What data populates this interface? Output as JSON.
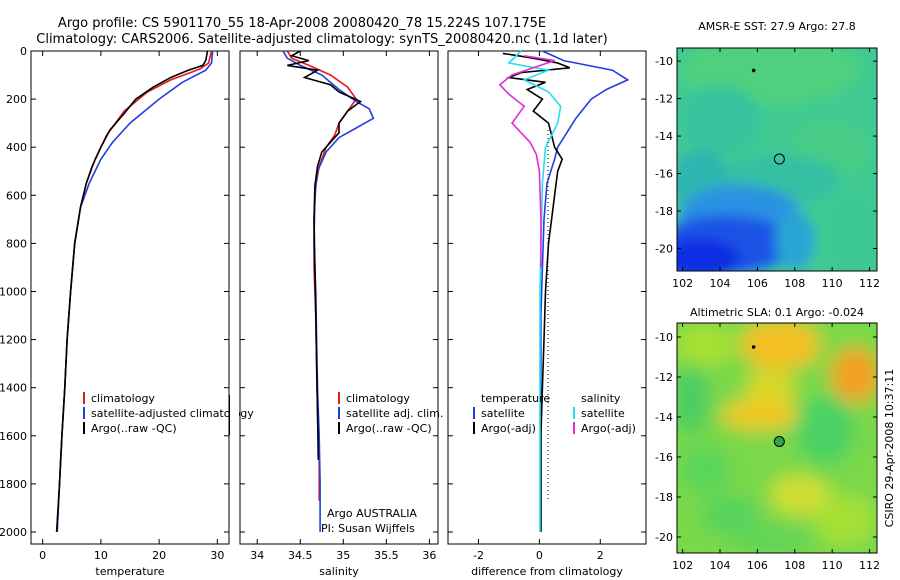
{
  "header": {
    "title_line1": "Argo profile: CS 5901170_55 18-Apr-2008 20080420_78 15.224S 107.175E",
    "title_line2": "Climatology: CARS2006. Satellite-adjusted climatology: synTS_20080420.nc (1.1d later)"
  },
  "credit": "CSIRO 29-Apr-2008 10:37:11",
  "colors": {
    "climatology": "#e41a1c",
    "satellite": "#1f3fe0",
    "argo": "#000000",
    "sat_salinity": "#22e0ee",
    "argo_adj_salinity": "#e52ad8"
  },
  "chart_data": [
    {
      "type": "line",
      "xlabel": "temperature",
      "xlim": [
        -2,
        32
      ],
      "ylim": [
        2050,
        0
      ],
      "xticks": [
        0,
        10,
        20,
        30
      ],
      "yticks": [
        0,
        200,
        400,
        600,
        800,
        1000,
        1200,
        1400,
        1600,
        1800,
        2000
      ],
      "legend": [
        "climatology",
        "satellite-adjusted climatology",
        "Argo(..raw -QC)"
      ],
      "series": [
        {
          "name": "climatology",
          "color": "#e41a1c",
          "points": [
            [
              29.0,
              0
            ],
            [
              28.5,
              50
            ],
            [
              27.0,
              75
            ],
            [
              22.0,
              120
            ],
            [
              18.0,
              170
            ],
            [
              14.0,
              250
            ],
            [
              11.0,
              350
            ],
            [
              9.0,
              450
            ],
            [
              7.5,
              550
            ],
            [
              6.5,
              650
            ],
            [
              5.5,
              800
            ],
            [
              4.8,
              1000
            ],
            [
              4.2,
              1200
            ],
            [
              3.8,
              1400
            ],
            [
              3.3,
              1600
            ],
            [
              2.9,
              1800
            ],
            [
              2.5,
              2000
            ]
          ]
        },
        {
          "name": "satellite-adjusted climatology",
          "color": "#1f3fe0",
          "points": [
            [
              29.2,
              0
            ],
            [
              29.0,
              50
            ],
            [
              28.0,
              80
            ],
            [
              24.0,
              130
            ],
            [
              20.0,
              200
            ],
            [
              15.0,
              300
            ],
            [
              12.0,
              380
            ],
            [
              10.0,
              450
            ],
            [
              8.0,
              550
            ],
            [
              6.5,
              650
            ],
            [
              5.5,
              800
            ],
            [
              4.8,
              1000
            ],
            [
              4.2,
              1200
            ],
            [
              3.8,
              1400
            ],
            [
              3.3,
              1600
            ],
            [
              2.9,
              1800
            ],
            [
              2.5,
              2000
            ]
          ]
        },
        {
          "name": "Argo(..raw -QC)",
          "color": "#000000",
          "points": [
            [
              28.3,
              0
            ],
            [
              28.0,
              40
            ],
            [
              27.5,
              60
            ],
            [
              25.0,
              80
            ],
            [
              22.0,
              110
            ],
            [
              19.0,
              150
            ],
            [
              16.0,
              200
            ],
            [
              14.0,
              260
            ],
            [
              11.5,
              330
            ],
            [
              10.0,
              400
            ],
            [
              8.5,
              480
            ],
            [
              7.5,
              550
            ],
            [
              6.5,
              650
            ],
            [
              5.5,
              800
            ],
            [
              4.8,
              1000
            ],
            [
              4.2,
              1200
            ],
            [
              3.8,
              1400
            ],
            [
              3.3,
              1600
            ],
            [
              2.9,
              1800
            ],
            [
              2.4,
              2000
            ]
          ]
        }
      ]
    },
    {
      "type": "line",
      "xlabel": "salinity",
      "xlim": [
        33.8,
        36.1
      ],
      "ylim": [
        2050,
        0
      ],
      "xticks": [
        34,
        34.5,
        35,
        35.5,
        36
      ],
      "legend": [
        "climatology",
        "satellite adj. clim.",
        "Argo(..raw -QC)"
      ],
      "annotation": [
        "Argo AUSTRALIA",
        "PI: Susan Wijffels"
      ],
      "series": [
        {
          "name": "climatology",
          "color": "#e41a1c",
          "points": [
            [
              34.35,
              0
            ],
            [
              34.4,
              30
            ],
            [
              34.6,
              60
            ],
            [
              34.85,
              100
            ],
            [
              35.05,
              150
            ],
            [
              35.15,
              200
            ],
            [
              35.05,
              250
            ],
            [
              34.95,
              300
            ],
            [
              34.9,
              350
            ],
            [
              34.8,
              400
            ],
            [
              34.72,
              480
            ],
            [
              34.68,
              560
            ],
            [
              34.66,
              700
            ],
            [
              34.66,
              900
            ],
            [
              34.68,
              1100
            ],
            [
              34.69,
              1300
            ],
            [
              34.7,
              1500
            ],
            [
              34.72,
              1700
            ],
            [
              34.72,
              1870
            ]
          ]
        },
        {
          "name": "satellite adj. clim.",
          "color": "#1f3fe0",
          "points": [
            [
              34.3,
              0
            ],
            [
              34.35,
              30
            ],
            [
              34.5,
              60
            ],
            [
              34.75,
              100
            ],
            [
              34.95,
              160
            ],
            [
              35.15,
              210
            ],
            [
              35.3,
              240
            ],
            [
              35.35,
              280
            ],
            [
              35.15,
              320
            ],
            [
              34.95,
              360
            ],
            [
              34.8,
              420
            ],
            [
              34.7,
              500
            ],
            [
              34.67,
              600
            ],
            [
              34.66,
              800
            ],
            [
              34.68,
              1000
            ],
            [
              34.69,
              1200
            ],
            [
              34.7,
              1400
            ],
            [
              34.72,
              1600
            ],
            [
              34.73,
              1800
            ],
            [
              34.73,
              2000
            ]
          ]
        },
        {
          "name": "Argo(..raw -QC)",
          "color": "#000000",
          "points": [
            [
              34.5,
              0
            ],
            [
              34.4,
              20
            ],
            [
              34.6,
              40
            ],
            [
              34.35,
              60
            ],
            [
              34.7,
              80
            ],
            [
              34.55,
              110
            ],
            [
              34.85,
              140
            ],
            [
              34.95,
              170
            ],
            [
              35.2,
              210
            ],
            [
              35.05,
              250
            ],
            [
              34.95,
              300
            ],
            [
              34.95,
              340
            ],
            [
              34.85,
              380
            ],
            [
              34.75,
              420
            ],
            [
              34.7,
              480
            ],
            [
              34.67,
              560
            ],
            [
              34.66,
              700
            ],
            [
              34.67,
              900
            ],
            [
              34.68,
              1100
            ],
            [
              34.69,
              1300
            ],
            [
              34.7,
              1500
            ],
            [
              34.71,
              1700
            ]
          ]
        }
      ]
    },
    {
      "type": "line",
      "xlabel": "difference from climatology",
      "xlim": [
        -3,
        3.5
      ],
      "ylim": [
        2050,
        0
      ],
      "xticks": [
        -2,
        0,
        2
      ],
      "legend_left_header": "temperature",
      "legend_right_header": "salinity",
      "legend": [
        "satellite",
        "Argo(-adj)",
        "satellite",
        "Argo(-adj)"
      ],
      "series": [
        {
          "name": "satellite",
          "quantity": "temperature",
          "color": "#1f3fe0",
          "points": [
            [
              0.1,
              0
            ],
            [
              0.8,
              40
            ],
            [
              2.4,
              80
            ],
            [
              2.9,
              120
            ],
            [
              2.2,
              160
            ],
            [
              1.7,
              200
            ],
            [
              1.2,
              280
            ],
            [
              0.6,
              400
            ],
            [
              0.5,
              450
            ],
            [
              0.25,
              550
            ],
            [
              0.15,
              700
            ],
            [
              0.1,
              900
            ],
            [
              0.05,
              1100
            ],
            [
              0.05,
              1300
            ],
            [
              0.05,
              1500
            ],
            [
              0.05,
              1700
            ],
            [
              0.05,
              1900
            ],
            [
              0.05,
              2000
            ]
          ]
        },
        {
          "name": "Argo(-adj)",
          "quantity": "temperature",
          "color": "#000000",
          "points": [
            [
              -1.2,
              10
            ],
            [
              -0.2,
              30
            ],
            [
              0.6,
              50
            ],
            [
              1.0,
              70
            ],
            [
              -0.6,
              90
            ],
            [
              -1.0,
              110
            ],
            [
              0.2,
              130
            ],
            [
              -0.4,
              160
            ],
            [
              0.1,
              200
            ],
            [
              -0.2,
              250
            ],
            [
              0.3,
              300
            ],
            [
              0.4,
              350
            ],
            [
              0.5,
              400
            ],
            [
              0.75,
              450
            ],
            [
              0.6,
              500
            ],
            [
              0.5,
              600
            ],
            [
              0.4,
              700
            ],
            [
              0.3,
              800
            ],
            [
              0.2,
              1000
            ],
            [
              0.15,
              1200
            ],
            [
              0.1,
              1400
            ],
            [
              0.05,
              1600
            ],
            [
              0.05,
              1800
            ],
            [
              0.05,
              2000
            ]
          ]
        },
        {
          "name": "satellite",
          "quantity": "salinity",
          "color": "#22e0ee",
          "points": [
            [
              -0.6,
              0
            ],
            [
              -1.0,
              50
            ],
            [
              0.3,
              80
            ],
            [
              -0.5,
              120
            ],
            [
              0.3,
              170
            ],
            [
              0.7,
              230
            ],
            [
              0.6,
              300
            ],
            [
              0.4,
              350
            ],
            [
              0.2,
              400
            ],
            [
              0.1,
              550
            ],
            [
              0.05,
              800
            ],
            [
              0.02,
              1000
            ],
            [
              0.02,
              1400
            ],
            [
              0.02,
              1800
            ],
            [
              0.02,
              2000
            ]
          ]
        },
        {
          "name": "Argo(-adj)",
          "quantity": "salinity",
          "color": "#e52ad8",
          "points": [
            [
              -0.5,
              20
            ],
            [
              0.5,
              40
            ],
            [
              -0.2,
              70
            ],
            [
              -0.9,
              100
            ],
            [
              -1.3,
              140
            ],
            [
              -1.0,
              180
            ],
            [
              -0.5,
              230
            ],
            [
              -0.9,
              300
            ],
            [
              -0.6,
              340
            ],
            [
              -0.3,
              380
            ],
            [
              -0.1,
              430
            ],
            [
              0.0,
              500
            ],
            [
              0.05,
              700
            ],
            [
              0.05,
              900
            ]
          ]
        }
      ]
    },
    {
      "type": "heatmap",
      "title": "AMSR-E SST: 27.9 Argo: 27.8",
      "xlim": [
        101.7,
        112.4
      ],
      "ylim": [
        -21.2,
        -9.3
      ],
      "xticks": [
        102,
        104,
        106,
        108,
        110,
        112
      ],
      "yticks": [
        -10,
        -12,
        -14,
        -16,
        -18,
        -20
      ],
      "profile_location": [
        107.175,
        -15.224
      ],
      "previous_location": [
        105.8,
        -10.5
      ]
    },
    {
      "type": "heatmap",
      "title": "Altimetric SLA: 0.1 Argo: -0.024",
      "xlim": [
        101.7,
        112.4
      ],
      "ylim": [
        -20.8,
        -9.3
      ],
      "xticks": [
        102,
        104,
        106,
        108,
        110,
        112
      ],
      "yticks": [
        -10,
        -12,
        -14,
        -16,
        -18,
        -20
      ],
      "profile_location": [
        107.175,
        -15.224
      ],
      "previous_location": [
        105.8,
        -10.5
      ]
    }
  ]
}
